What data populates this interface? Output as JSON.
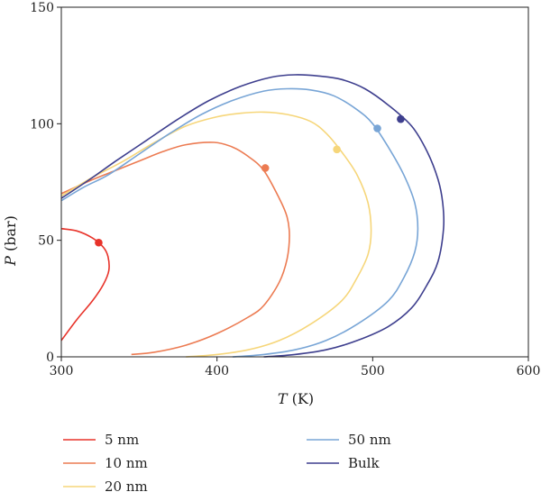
{
  "chart_data": {
    "type": "line",
    "title": "",
    "xlabel": {
      "var": "T",
      "unit": " (K)"
    },
    "ylabel": {
      "var": "P",
      "unit": " (bar)"
    },
    "xlim": [
      300,
      600
    ],
    "ylim": [
      0,
      150
    ],
    "xticks": [
      300,
      400,
      500,
      600
    ],
    "yticks": [
      0,
      50,
      100,
      150
    ],
    "grid": false,
    "legend": {
      "position": "bottom",
      "columns": 2
    },
    "series": [
      {
        "name": "5 nm",
        "color": "#e8332a",
        "points": [
          [
            300,
            7
          ],
          [
            310,
            16
          ],
          [
            320,
            24
          ],
          [
            327,
            31
          ],
          [
            330.5,
            37
          ],
          [
            330,
            43
          ],
          [
            327,
            47
          ],
          [
            320,
            51
          ],
          [
            310,
            54
          ],
          [
            300,
            55
          ]
        ],
        "critical_point": [
          324,
          49
        ]
      },
      {
        "name": "10 nm",
        "color": "#ec7b52",
        "points": [
          [
            345,
            1
          ],
          [
            360,
            2
          ],
          [
            380,
            5
          ],
          [
            400,
            10
          ],
          [
            420,
            17
          ],
          [
            430,
            22
          ],
          [
            440,
            32
          ],
          [
            445,
            42
          ],
          [
            446.5,
            52
          ],
          [
            445,
            60
          ],
          [
            440,
            68
          ],
          [
            430,
            80
          ],
          [
            420,
            86
          ],
          [
            410,
            90
          ],
          [
            398,
            92
          ],
          [
            380,
            91
          ],
          [
            365,
            88
          ],
          [
            350,
            84
          ],
          [
            335,
            80
          ],
          [
            320,
            76
          ],
          [
            300,
            70
          ]
        ],
        "critical_point": [
          431,
          81
        ]
      },
      {
        "name": "20 nm",
        "color": "#f6d67a",
        "points": [
          [
            380,
            0
          ],
          [
            400,
            1
          ],
          [
            420,
            3
          ],
          [
            440,
            7
          ],
          [
            460,
            14
          ],
          [
            480,
            24
          ],
          [
            490,
            34
          ],
          [
            497,
            44
          ],
          [
            499,
            54
          ],
          [
            497,
            66
          ],
          [
            490,
            78
          ],
          [
            480,
            88
          ],
          [
            470,
            96
          ],
          [
            460,
            101
          ],
          [
            445,
            104
          ],
          [
            430,
            105
          ],
          [
            415,
            104.5
          ],
          [
            400,
            103
          ],
          [
            380,
            99
          ],
          [
            360,
            92
          ],
          [
            340,
            84
          ],
          [
            320,
            77
          ],
          [
            300,
            69
          ]
        ],
        "critical_point": [
          477,
          89
        ]
      },
      {
        "name": "50 nm",
        "color": "#78a5d6",
        "points": [
          [
            410,
            0
          ],
          [
            430,
            1
          ],
          [
            450,
            3
          ],
          [
            470,
            7
          ],
          [
            490,
            14
          ],
          [
            510,
            24
          ],
          [
            520,
            34
          ],
          [
            527,
            45
          ],
          [
            529,
            55
          ],
          [
            527,
            66
          ],
          [
            520,
            78
          ],
          [
            510,
            90
          ],
          [
            500,
            100
          ],
          [
            490,
            106
          ],
          [
            475,
            112
          ],
          [
            460,
            114.5
          ],
          [
            445,
            115
          ],
          [
            430,
            114
          ],
          [
            410,
            110
          ],
          [
            390,
            104
          ],
          [
            370,
            96
          ],
          [
            350,
            87
          ],
          [
            330,
            78
          ],
          [
            315,
            73
          ],
          [
            300,
            67
          ]
        ],
        "critical_point": [
          503,
          98
        ]
      },
      {
        "name": "Bulk",
        "color": "#3e3f8e",
        "points": [
          [
            430,
            0
          ],
          [
            450,
            1
          ],
          [
            470,
            3
          ],
          [
            490,
            7
          ],
          [
            510,
            13
          ],
          [
            525,
            21
          ],
          [
            535,
            31
          ],
          [
            542,
            41
          ],
          [
            545.5,
            55
          ],
          [
            545,
            66
          ],
          [
            542,
            76
          ],
          [
            535,
            88
          ],
          [
            525,
            99
          ],
          [
            510,
            108
          ],
          [
            495,
            115
          ],
          [
            480,
            119
          ],
          [
            465,
            120.5
          ],
          [
            450,
            121
          ],
          [
            435,
            120
          ],
          [
            415,
            116
          ],
          [
            395,
            110
          ],
          [
            375,
            102
          ],
          [
            355,
            93
          ],
          [
            335,
            84
          ],
          [
            318,
            76
          ],
          [
            300,
            68
          ]
        ],
        "critical_point": [
          518,
          102
        ]
      }
    ]
  }
}
